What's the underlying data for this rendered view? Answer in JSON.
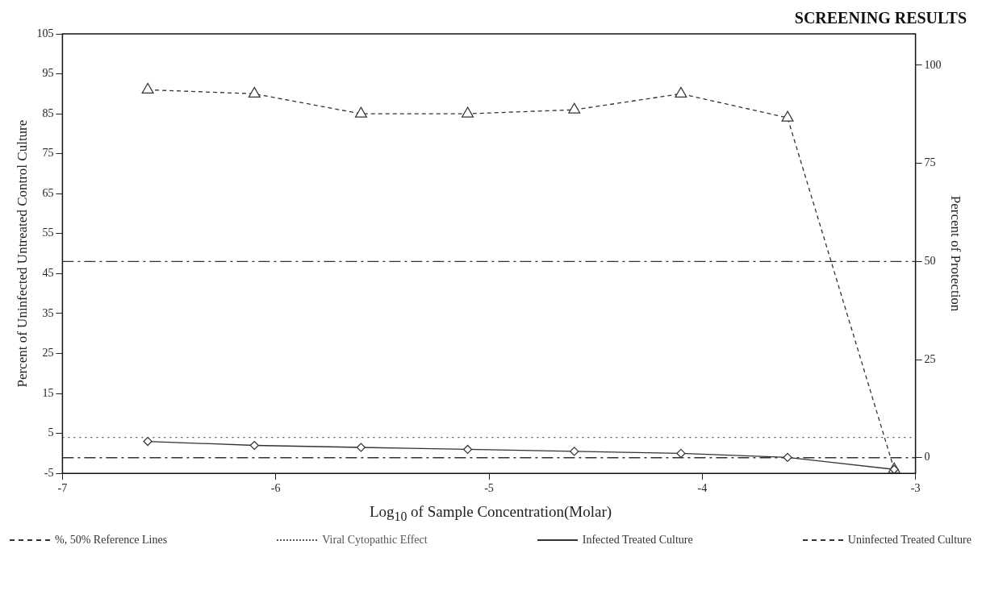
{
  "chart_data": {
    "type": "line",
    "title": "SCREENING RESULTS",
    "xlabel": "Log$_{10}$ of Sample Concentration(Molar)",
    "ylabel": "Percent of Uninfected Untreated Control Culture",
    "y2label": "Percent of Protection",
    "xlim": [
      -7,
      -3
    ],
    "xticks": [
      -7,
      -6,
      -5,
      -4,
      -3
    ],
    "ylim": [
      -5,
      105
    ],
    "yticks": [
      -5,
      5,
      15,
      25,
      35,
      45,
      55,
      65,
      75,
      85,
      95,
      105
    ],
    "y2lim": [
      -4,
      108
    ],
    "y2ticks": [
      0,
      25,
      50,
      75,
      100
    ],
    "series": [
      {
        "name": "Viral Cytopathic Effect",
        "color": "#555555",
        "x": [
          -7,
          -3
        ],
        "values": [
          4,
          4
        ],
        "marker": "none",
        "line_style": "dotted"
      },
      {
        "name": "Infected Treated Culture",
        "color": "#333333",
        "x": [
          -6.6,
          -6.1,
          -5.6,
          -5.1,
          -4.6,
          -4.1,
          -3.6,
          -3.1
        ],
        "values": [
          3,
          2,
          1.5,
          1,
          0.5,
          0,
          -1,
          -4
        ],
        "marker": "diamond",
        "line_style": "solid"
      },
      {
        "name": "Uninfected Treated Culture",
        "color": "#333333",
        "x": [
          -6.6,
          -6.1,
          -5.6,
          -5.1,
          -4.6,
          -4.1,
          -3.6,
          -3.1
        ],
        "values": [
          91,
          90,
          85,
          85,
          86,
          90,
          84,
          -4
        ],
        "marker": "triangle",
        "line_style": "dashed"
      }
    ],
    "ref_lines": [
      {
        "axis": "y2",
        "value": 0,
        "color": "#333333",
        "line_style": "dashed"
      },
      {
        "axis": "y2",
        "value": 50,
        "color": "#333333",
        "line_style": "dashed"
      }
    ],
    "annotations": [
      "%, 50% Reference Lines"
    ],
    "grid": false,
    "legend": "bottom"
  }
}
